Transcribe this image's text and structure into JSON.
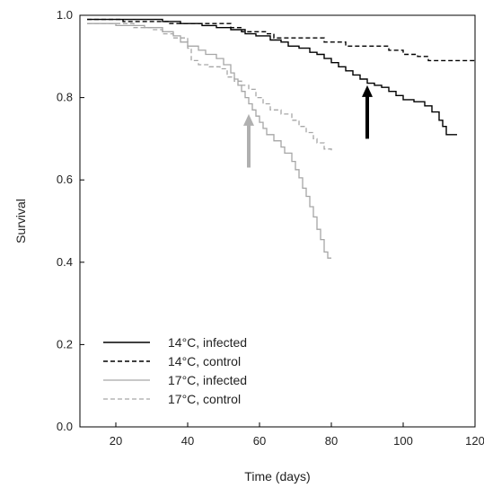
{
  "chart_data": {
    "type": "line",
    "xlabel": "Time (days)",
    "ylabel": "Survival",
    "xlim": [
      10,
      120
    ],
    "ylim": [
      0,
      1
    ],
    "x_ticks": [
      20,
      40,
      60,
      80,
      100,
      120
    ],
    "y_ticks": [
      "0.0",
      "0.2",
      "0.4",
      "0.6",
      "0.8",
      "1.0"
    ],
    "grid": false,
    "legend_position": "bottom-left",
    "series": [
      {
        "name": "14°C, infected",
        "color": "#000000",
        "dash": "solid",
        "points": [
          [
            12,
            0.99
          ],
          [
            33,
            0.985
          ],
          [
            38,
            0.98
          ],
          [
            44,
            0.975
          ],
          [
            48,
            0.97
          ],
          [
            52,
            0.965
          ],
          [
            56,
            0.955
          ],
          [
            59,
            0.95
          ],
          [
            63,
            0.94
          ],
          [
            66,
            0.935
          ],
          [
            68,
            0.925
          ],
          [
            71,
            0.92
          ],
          [
            74,
            0.91
          ],
          [
            76,
            0.905
          ],
          [
            78,
            0.895
          ],
          [
            80,
            0.885
          ],
          [
            82,
            0.875
          ],
          [
            84,
            0.865
          ],
          [
            86,
            0.855
          ],
          [
            88,
            0.845
          ],
          [
            90,
            0.835
          ],
          [
            92,
            0.83
          ],
          [
            94,
            0.825
          ],
          [
            96,
            0.815
          ],
          [
            98,
            0.805
          ],
          [
            100,
            0.795
          ],
          [
            103,
            0.79
          ],
          [
            106,
            0.78
          ],
          [
            108,
            0.765
          ],
          [
            110,
            0.745
          ],
          [
            111,
            0.73
          ],
          [
            112,
            0.71
          ],
          [
            115,
            0.71
          ]
        ]
      },
      {
        "name": "14°C, control",
        "color": "#000000",
        "dash": "dashed",
        "points": [
          [
            12,
            0.99
          ],
          [
            22,
            0.985
          ],
          [
            35,
            0.98
          ],
          [
            52,
            0.97
          ],
          [
            55,
            0.96
          ],
          [
            62,
            0.955
          ],
          [
            64,
            0.945
          ],
          [
            76,
            0.945
          ],
          [
            78,
            0.935
          ],
          [
            84,
            0.925
          ],
          [
            96,
            0.915
          ],
          [
            100,
            0.905
          ],
          [
            104,
            0.9
          ],
          [
            107,
            0.89
          ],
          [
            118,
            0.89
          ],
          [
            120,
            0.885
          ]
        ]
      },
      {
        "name": "17°C, infected",
        "color": "#a6a6a6",
        "dash": "solid",
        "points": [
          [
            12,
            0.98
          ],
          [
            20,
            0.975
          ],
          [
            28,
            0.97
          ],
          [
            33,
            0.96
          ],
          [
            36,
            0.95
          ],
          [
            38,
            0.935
          ],
          [
            40,
            0.925
          ],
          [
            43,
            0.915
          ],
          [
            45,
            0.905
          ],
          [
            48,
            0.895
          ],
          [
            50,
            0.88
          ],
          [
            52,
            0.86
          ],
          [
            53,
            0.845
          ],
          [
            54,
            0.83
          ],
          [
            55,
            0.815
          ],
          [
            56,
            0.8
          ],
          [
            57,
            0.785
          ],
          [
            58,
            0.77
          ],
          [
            59,
            0.755
          ],
          [
            60,
            0.74
          ],
          [
            61,
            0.725
          ],
          [
            62,
            0.71
          ],
          [
            64,
            0.695
          ],
          [
            66,
            0.68
          ],
          [
            67,
            0.665
          ],
          [
            69,
            0.645
          ],
          [
            70,
            0.625
          ],
          [
            71,
            0.605
          ],
          [
            72,
            0.58
          ],
          [
            73,
            0.56
          ],
          [
            74,
            0.535
          ],
          [
            75,
            0.51
          ],
          [
            76,
            0.48
          ],
          [
            77,
            0.455
          ],
          [
            78,
            0.425
          ],
          [
            79,
            0.41
          ],
          [
            80,
            0.41
          ]
        ]
      },
      {
        "name": "17°C, control",
        "color": "#a6a6a6",
        "dash": "dashed",
        "points": [
          [
            12,
            0.98
          ],
          [
            25,
            0.97
          ],
          [
            30,
            0.965
          ],
          [
            33,
            0.955
          ],
          [
            36,
            0.945
          ],
          [
            40,
            0.92
          ],
          [
            41,
            0.89
          ],
          [
            43,
            0.88
          ],
          [
            46,
            0.875
          ],
          [
            49,
            0.87
          ],
          [
            51,
            0.85
          ],
          [
            53,
            0.84
          ],
          [
            55,
            0.83
          ],
          [
            57,
            0.82
          ],
          [
            59,
            0.8
          ],
          [
            61,
            0.785
          ],
          [
            63,
            0.77
          ],
          [
            66,
            0.76
          ],
          [
            69,
            0.745
          ],
          [
            71,
            0.73
          ],
          [
            73,
            0.715
          ],
          [
            75,
            0.7
          ],
          [
            76,
            0.69
          ],
          [
            78,
            0.675
          ],
          [
            80,
            0.67
          ]
        ]
      }
    ],
    "annotations": [
      {
        "type": "arrow",
        "color": "#000000",
        "x": 90,
        "y_from": 0.7,
        "y_to": 0.83
      },
      {
        "type": "arrow",
        "color": "#b0b0b0",
        "x": 57,
        "y_from": 0.63,
        "y_to": 0.76
      }
    ]
  }
}
